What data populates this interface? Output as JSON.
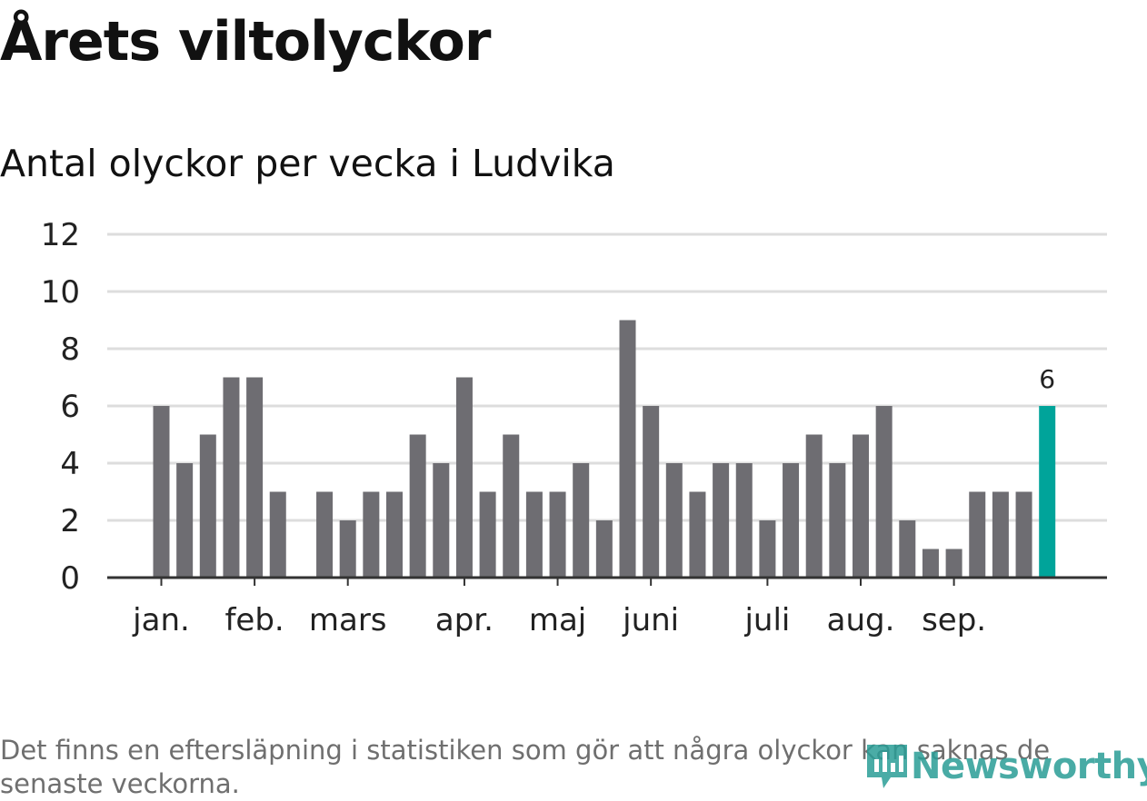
{
  "title": "Årets viltolyckor",
  "subtitle": "Antal olyckor per vecka i Ludvika",
  "note": "Det finns en eftersläpning i statistiken som gör att några olyckor kan saknas de senaste veckorna.",
  "logo": {
    "text": "Newsworthy",
    "color": "#2a9d96"
  },
  "colors": {
    "bar": "#6e6d72",
    "highlight": "#00a49a",
    "grid": "#dddddd",
    "axis": "#333333"
  },
  "chart_data": {
    "type": "bar",
    "title": "Årets viltolyckor",
    "subtitle": "Antal olyckor per vecka i Ludvika",
    "xlabel": "",
    "ylabel": "",
    "ylim": [
      0,
      12
    ],
    "yticks": [
      0,
      2,
      4,
      6,
      8,
      10,
      12
    ],
    "grid": true,
    "values": [
      6,
      4,
      5,
      7,
      7,
      3,
      0,
      3,
      2,
      3,
      3,
      5,
      4,
      7,
      3,
      5,
      3,
      3,
      4,
      2,
      9,
      6,
      4,
      3,
      4,
      4,
      2,
      4,
      5,
      4,
      5,
      6,
      2,
      1,
      1,
      3,
      3,
      3,
      6
    ],
    "highlight_index": 38,
    "highlight_label": "6",
    "month_labels": [
      {
        "label": "jan.",
        "week_index": 0
      },
      {
        "label": "feb.",
        "week_index": 4
      },
      {
        "label": "mars",
        "week_index": 8
      },
      {
        "label": "apr.",
        "week_index": 13
      },
      {
        "label": "maj",
        "week_index": 17
      },
      {
        "label": "juni",
        "week_index": 21
      },
      {
        "label": "juli",
        "week_index": 26
      },
      {
        "label": "aug.",
        "week_index": 30
      },
      {
        "label": "sep.",
        "week_index": 34
      }
    ]
  }
}
